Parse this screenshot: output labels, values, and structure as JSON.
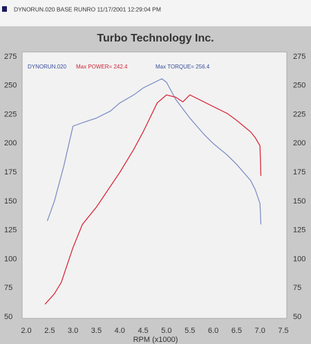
{
  "header": "DYNORUN.020   BASE RUNRO   11/17/2001 12:29:04 PM",
  "chart_data": {
    "type": "line",
    "title": "Turbo Technology Inc.",
    "annotations": [
      {
        "text": "DYNORUN.020",
        "color": "#3a4f9a"
      },
      {
        "text": "Max POWER= 242.4",
        "color": "#c8283a"
      },
      {
        "text": "Max TORQUE= 256.4",
        "color": "#3a4f9a"
      }
    ],
    "x_label": "RPM (x1000)",
    "series": [
      {
        "color": "#7f8fc4",
        "x": [
          2.45,
          2.6,
          2.8,
          3.0,
          3.2,
          3.5,
          3.8,
          4.0,
          4.3,
          4.5,
          4.7,
          4.9,
          5.0,
          5.2,
          5.5,
          5.8,
          6.0,
          6.3,
          6.5,
          6.8,
          6.9,
          7.0,
          7.02
        ],
        "values": [
          133,
          150,
          180,
          215,
          218,
          222,
          228,
          235,
          242,
          248,
          252,
          256,
          253,
          238,
          222,
          208,
          200,
          190,
          182,
          168,
          160,
          148,
          130
        ]
      },
      {
        "color": "#d8283a",
        "x": [
          2.4,
          2.6,
          2.75,
          3.0,
          3.2,
          3.5,
          3.8,
          4.0,
          4.3,
          4.5,
          4.8,
          5.0,
          5.2,
          5.35,
          5.5,
          5.8,
          6.0,
          6.3,
          6.5,
          6.8,
          6.9,
          7.0,
          7.02
        ],
        "values": [
          61,
          70,
          80,
          110,
          130,
          145,
          163,
          175,
          195,
          210,
          235,
          242,
          240,
          236,
          242,
          236,
          232,
          226,
          220,
          210,
          205,
          198,
          172
        ]
      }
    ],
    "xlim": [
      2.0,
      7.5
    ],
    "xticks": [
      {
        "value": 2.0,
        "label": "2.0"
      },
      {
        "value": 2.5,
        "label": "2.5"
      },
      {
        "value": 3.0,
        "label": "3.0"
      },
      {
        "value": 3.5,
        "label": "3.5"
      },
      {
        "value": 4.0,
        "label": "4.0"
      },
      {
        "value": 4.5,
        "label": "4.5"
      },
      {
        "value": 5.0,
        "label": "5.0"
      },
      {
        "value": 5.5,
        "label": "5.5"
      },
      {
        "value": 6.0,
        "label": "6.0"
      },
      {
        "value": 6.5,
        "label": "6.5"
      },
      {
        "value": 7.0,
        "label": "7.0"
      },
      {
        "value": 7.5,
        "label": "7.5"
      }
    ],
    "ylim": [
      50,
      275
    ],
    "yticks": [
      50,
      75,
      100,
      125,
      150,
      175,
      200,
      225,
      250,
      275
    ],
    "y2lim": [
      50,
      275
    ],
    "y2ticks": [
      50,
      75,
      100,
      125,
      150,
      175,
      200,
      225,
      250,
      275
    ]
  }
}
